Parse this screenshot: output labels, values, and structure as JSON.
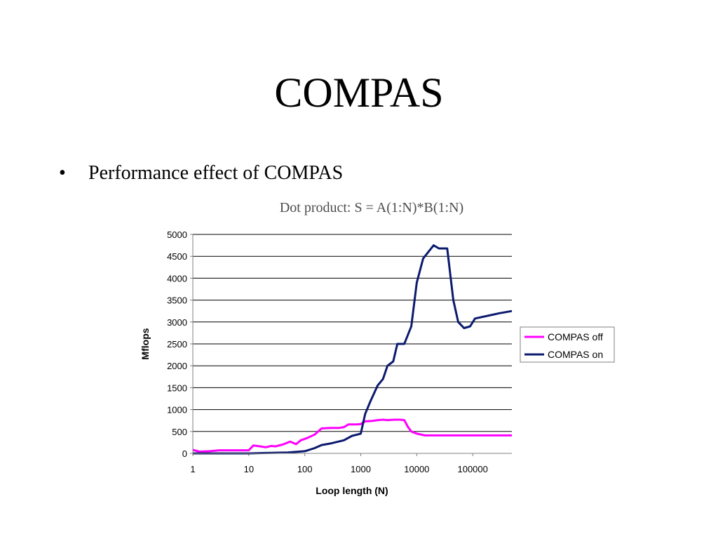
{
  "slide": {
    "title": "COMPAS",
    "bullet_marker": "•",
    "bullet_text": "Performance effect of COMPAS"
  },
  "colors": {
    "compas_off": "#ff00ff",
    "compas_on": "#0b1a6e",
    "grid": "#000000",
    "chart_title": "#4d4d4d"
  },
  "chart_data": {
    "type": "line",
    "title": "Dot product: S = A(1:N)*B(1:N)",
    "xlabel": "Loop length (N)",
    "ylabel": "Mflops",
    "x_scale": "log",
    "xlim": [
      1,
      500000
    ],
    "ylim": [
      0,
      5000
    ],
    "x_ticks": [
      1,
      10,
      100,
      1000,
      10000,
      100000
    ],
    "x_tick_labels": [
      "1",
      "10",
      "100",
      "1000",
      "10000",
      "100000"
    ],
    "y_ticks": [
      0,
      500,
      1000,
      1500,
      2000,
      2500,
      3000,
      3500,
      4000,
      4500,
      5000
    ],
    "y_tick_labels": [
      "0",
      "500",
      "1000",
      "1500",
      "2000",
      "2500",
      "3000",
      "3500",
      "4000",
      "4500",
      "5000"
    ],
    "grid": "horizontal",
    "legend_position": "right",
    "series": [
      {
        "name": "COMPAS off",
        "color": "#ff00ff",
        "points": [
          [
            1,
            80
          ],
          [
            1.3,
            40
          ],
          [
            2,
            50
          ],
          [
            3,
            70
          ],
          [
            5,
            70
          ],
          [
            8,
            70
          ],
          [
            10,
            70
          ],
          [
            12,
            180
          ],
          [
            16,
            160
          ],
          [
            20,
            140
          ],
          [
            25,
            170
          ],
          [
            30,
            160
          ],
          [
            40,
            200
          ],
          [
            55,
            270
          ],
          [
            70,
            210
          ],
          [
            85,
            300
          ],
          [
            110,
            350
          ],
          [
            150,
            430
          ],
          [
            200,
            570
          ],
          [
            300,
            580
          ],
          [
            400,
            580
          ],
          [
            500,
            600
          ],
          [
            600,
            660
          ],
          [
            800,
            660
          ],
          [
            1000,
            670
          ],
          [
            1200,
            730
          ],
          [
            1600,
            740
          ],
          [
            2000,
            760
          ],
          [
            2500,
            770
          ],
          [
            3000,
            760
          ],
          [
            4000,
            770
          ],
          [
            5000,
            770
          ],
          [
            6000,
            760
          ],
          [
            7000,
            600
          ],
          [
            8000,
            500
          ],
          [
            10000,
            450
          ],
          [
            14000,
            410
          ],
          [
            20000,
            410
          ],
          [
            50000,
            410
          ],
          [
            100000,
            410
          ],
          [
            200000,
            410
          ],
          [
            500000,
            410
          ]
        ]
      },
      {
        "name": "COMPAS on",
        "color": "#0b1a6e",
        "points": [
          [
            1,
            0
          ],
          [
            10,
            0
          ],
          [
            20,
            10
          ],
          [
            50,
            20
          ],
          [
            100,
            50
          ],
          [
            150,
            120
          ],
          [
            200,
            190
          ],
          [
            300,
            230
          ],
          [
            500,
            300
          ],
          [
            700,
            400
          ],
          [
            1000,
            450
          ],
          [
            1200,
            900
          ],
          [
            1500,
            1200
          ],
          [
            2000,
            1550
          ],
          [
            2500,
            1700
          ],
          [
            3000,
            2000
          ],
          [
            3800,
            2100
          ],
          [
            4500,
            2500
          ],
          [
            6000,
            2500
          ],
          [
            8000,
            2900
          ],
          [
            10000,
            3900
          ],
          [
            13000,
            4450
          ],
          [
            20000,
            4750
          ],
          [
            25000,
            4680
          ],
          [
            35000,
            4680
          ],
          [
            45000,
            3500
          ],
          [
            55000,
            3000
          ],
          [
            70000,
            2860
          ],
          [
            90000,
            2900
          ],
          [
            110000,
            3080
          ],
          [
            200000,
            3150
          ],
          [
            300000,
            3200
          ],
          [
            500000,
            3250
          ]
        ]
      }
    ]
  }
}
